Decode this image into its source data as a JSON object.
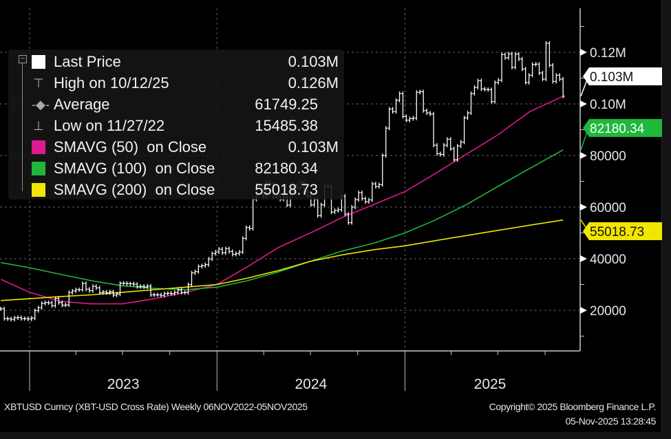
{
  "chart_data": {
    "type": "line",
    "subtype": "weekly price bars with simple moving averages",
    "security": "XBTUSD Curncy (XBT-USD Cross Rate) Weekly 06NOV2022-05NOV2025",
    "date_range": [
      "2022-11-06",
      "2025-11-05"
    ],
    "x_tick_labels": [
      "2023",
      "2024",
      "2025"
    ],
    "y_axis": {
      "position": "right",
      "ylim": [
        4000,
        137000
      ],
      "tick_labels": [
        "20000",
        "40000",
        "60000",
        "80000",
        "0.10M",
        "0.12M"
      ],
      "tick_values": [
        20000,
        40000,
        60000,
        80000,
        100000,
        120000
      ]
    },
    "grid": true,
    "legend_placement": "top-left",
    "colors": {
      "price": "#ffffff",
      "sma50": "#e0198f",
      "sma100": "#1fb83c",
      "sma200": "#f2e600",
      "background": "#000000"
    },
    "price_weekly_close": [
      20600,
      16800,
      16700,
      16500,
      17100,
      17200,
      16800,
      16800,
      16600,
      17000,
      19900,
      21000,
      22700,
      23000,
      22900,
      21800,
      24600,
      23000,
      22000,
      22100,
      26900,
      27500,
      28000,
      28000,
      30400,
      28200,
      27600,
      29300,
      28700,
      26900,
      27100,
      26800,
      27200,
      25900,
      26300,
      30500,
      30500,
      30300,
      30300,
      30100,
      29200,
      29300,
      29100,
      29400,
      26000,
      26000,
      26000,
      25800,
      26500,
      26600,
      26500,
      27000,
      27900,
      26900,
      26900,
      30000,
      34500,
      35000,
      37000,
      37300,
      37700,
      39900,
      42000,
      42600,
      43700,
      42300,
      43900,
      42800,
      41700,
      42000,
      42600,
      47900,
      52100,
      51700,
      63000,
      68800,
      68300,
      64000,
      69600,
      69000,
      63900,
      64500,
      63000,
      63900,
      60800,
      66200,
      68500,
      67500,
      69600,
      66000,
      64300,
      60900,
      63000,
      56700,
      60900,
      68200,
      68000,
      58100,
      58700,
      59000,
      64200,
      57300,
      54000,
      60000,
      62900,
      65600,
      63300,
      62100,
      62800,
      69000,
      68000,
      68700,
      80000,
      90600,
      98000,
      97000,
      101400,
      104000,
      95100,
      93700,
      94300,
      94500,
      104500,
      104700,
      97400,
      96500,
      96100,
      84000,
      80700,
      80400,
      84000,
      86300,
      82600,
      78400,
      83700,
      85200,
      94600,
      96500,
      104000,
      106400,
      109000,
      105800,
      105600,
      105500,
      100900,
      108300,
      109200,
      119100,
      117900,
      119400,
      114200,
      119300,
      117400,
      113500,
      108300,
      111100,
      115300,
      115400,
      112000,
      109600,
      123500,
      115000,
      108700,
      111100,
      109600,
      103000
    ],
    "sma_dates": [
      "2022-11-06",
      "2023-01-01",
      "2023-03-01",
      "2023-05-01",
      "2023-07-01",
      "2023-09-01",
      "2023-11-01",
      "2024-01-01",
      "2024-03-01",
      "2024-05-01",
      "2024-07-01",
      "2024-09-01",
      "2024-11-01",
      "2025-01-01",
      "2025-03-01",
      "2025-05-01",
      "2025-07-01",
      "2025-09-01",
      "2025-11-05"
    ],
    "series": [
      {
        "name": "SMAVG (50) on Close",
        "key": "sma50",
        "values": [
          32000,
          27000,
          23500,
          22500,
          22500,
          24500,
          27000,
          30000,
          37000,
          44500,
          50000,
          56000,
          61000,
          66000,
          73000,
          80500,
          88000,
          97000,
          103000
        ]
      },
      {
        "name": "SMAVG (100) on Close",
        "key": "sma100",
        "values": [
          38500,
          36500,
          34000,
          31500,
          29500,
          28500,
          28000,
          29000,
          31500,
          35000,
          39000,
          43000,
          46000,
          50000,
          55000,
          61000,
          68000,
          75000,
          82180.34
        ]
      },
      {
        "name": "SMAVG (200) on Close",
        "key": "sma200",
        "values": [
          23800,
          24500,
          25300,
          26000,
          27000,
          28000,
          29000,
          30000,
          32500,
          35500,
          39000,
          41500,
          43500,
          45000,
          47000,
          49000,
          51000,
          53000,
          55018.73
        ]
      }
    ],
    "price_tags": [
      {
        "label": "0.103M",
        "value": 103000,
        "key": "price"
      },
      {
        "label": "82180.34",
        "value": 82180.34,
        "key": "sma100"
      },
      {
        "label": "55018.73",
        "value": 55018.73,
        "key": "sma200"
      }
    ]
  },
  "legend": {
    "items": [
      {
        "label": "Last Price",
        "value": "0.103M",
        "icon": "white-square"
      },
      {
        "label": "High on 10/12/25",
        "value": "0.126M",
        "icon": "high-marker-icon"
      },
      {
        "label": "Average",
        "value": "61749.25",
        "icon": "average-marker-icon"
      },
      {
        "label": "Low on 11/27/22",
        "value": "15485.38",
        "icon": "low-marker-icon"
      },
      {
        "label": "SMAVG (50)  on Close",
        "value": "0.103M",
        "icon": "magenta-square"
      },
      {
        "label": "SMAVG (100)  on Close",
        "value": "82180.34",
        "icon": "green-square"
      },
      {
        "label": "SMAVG (200)  on Close",
        "value": "55018.73",
        "icon": "yellow-square"
      }
    ]
  },
  "footer": {
    "description": "XBTUSD Curncy (XBT-USD Cross Rate) Weekly 06NOV2022-05NOV2025",
    "copyright": "Copyright© 2025 Bloomberg Finance L.P.",
    "timestamp": "05-Nov-2025 13:28:45"
  }
}
